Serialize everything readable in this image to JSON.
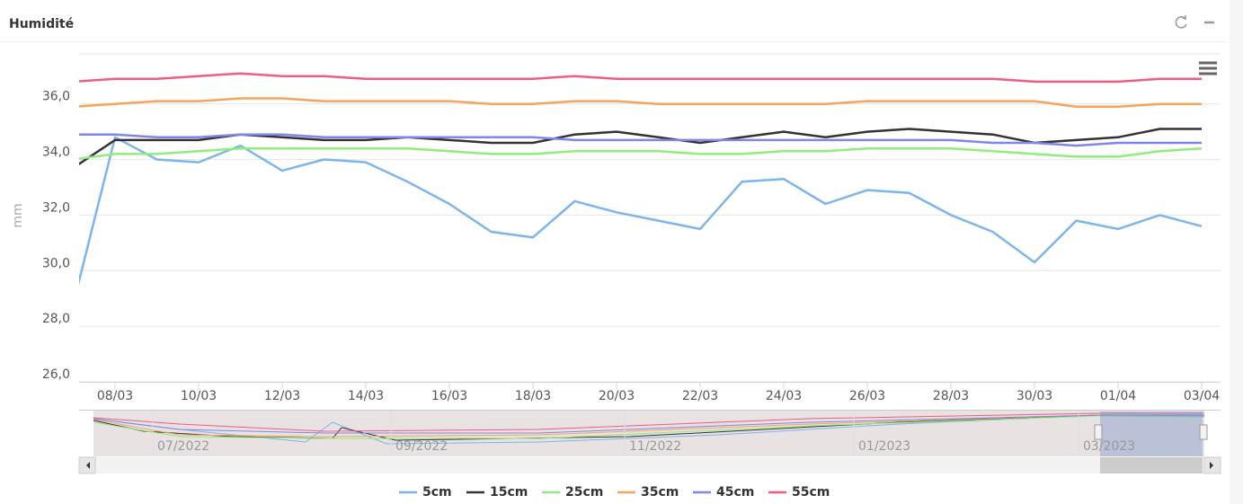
{
  "header": {
    "title": "Humidité"
  },
  "chart_data": {
    "type": "line",
    "y_label": "mm",
    "x": [
      null,
      "08/03",
      null,
      "10/03",
      null,
      "12/03",
      null,
      "14/03",
      null,
      "16/03",
      null,
      "18/03",
      null,
      "20/03",
      null,
      "22/03",
      null,
      "24/03",
      null,
      "26/03",
      null,
      "28/03",
      null,
      "30/03",
      null,
      "01/04",
      null,
      "03/04"
    ],
    "ylim": [
      26,
      37.8
    ],
    "yticks": [
      {
        "value": 26,
        "label": "26,0"
      },
      {
        "value": 28,
        "label": "28,0"
      },
      {
        "value": 30,
        "label": "30,0"
      },
      {
        "value": 32,
        "label": "32,0"
      },
      {
        "value": 34,
        "label": "34,0"
      },
      {
        "value": 36,
        "label": "36,0"
      }
    ],
    "grid": true,
    "legend": "bottom",
    "series": [
      {
        "name": "5cm",
        "color": "#7cb5ec",
        "values": [
          28.8,
          34.8,
          34.0,
          33.9,
          34.5,
          33.6,
          34.0,
          33.9,
          33.2,
          32.4,
          31.4,
          31.2,
          32.5,
          32.1,
          31.8,
          31.5,
          33.2,
          33.3,
          32.4,
          32.9,
          32.8,
          32.0,
          31.4,
          30.3,
          31.8,
          31.5,
          32.0,
          31.6
        ]
      },
      {
        "name": "15cm",
        "color": "#333333",
        "values": [
          33.7,
          34.7,
          34.7,
          34.7,
          34.9,
          34.8,
          34.7,
          34.7,
          34.8,
          34.7,
          34.6,
          34.6,
          34.9,
          35.0,
          34.8,
          34.6,
          34.8,
          35.0,
          34.8,
          35.0,
          35.1,
          35.0,
          34.9,
          34.6,
          34.7,
          34.8,
          35.1,
          35.1
        ]
      },
      {
        "name": "25cm",
        "color": "#90ed7d",
        "values": [
          34.0,
          34.2,
          34.2,
          34.3,
          34.4,
          34.4,
          34.4,
          34.4,
          34.4,
          34.3,
          34.2,
          34.2,
          34.3,
          34.3,
          34.3,
          34.2,
          34.2,
          34.3,
          34.3,
          34.4,
          34.4,
          34.4,
          34.3,
          34.2,
          34.1,
          34.1,
          34.3,
          34.4
        ]
      },
      {
        "name": "35cm",
        "color": "#f7a35c",
        "values": [
          35.9,
          36.0,
          36.1,
          36.1,
          36.2,
          36.2,
          36.1,
          36.1,
          36.1,
          36.1,
          36.0,
          36.0,
          36.1,
          36.1,
          36.0,
          36.0,
          36.0,
          36.0,
          36.0,
          36.1,
          36.1,
          36.1,
          36.1,
          36.1,
          35.9,
          35.9,
          36.0,
          36.0
        ]
      },
      {
        "name": "45cm",
        "color": "#8085e9",
        "values": [
          34.9,
          34.9,
          34.8,
          34.8,
          34.9,
          34.9,
          34.8,
          34.8,
          34.8,
          34.8,
          34.8,
          34.8,
          34.7,
          34.7,
          34.7,
          34.7,
          34.7,
          34.7,
          34.7,
          34.7,
          34.7,
          34.7,
          34.6,
          34.6,
          34.5,
          34.6,
          34.6,
          34.6
        ]
      },
      {
        "name": "55cm",
        "color": "#f15c80",
        "values": [
          36.8,
          36.9,
          36.9,
          37.0,
          37.1,
          37.0,
          37.0,
          36.9,
          36.9,
          36.9,
          36.9,
          36.9,
          37.0,
          36.9,
          36.9,
          36.9,
          36.9,
          36.9,
          36.9,
          36.9,
          36.9,
          36.9,
          36.9,
          36.8,
          36.8,
          36.8,
          36.9,
          36.9
        ]
      }
    ],
    "navigator": {
      "labels": [
        "07/2022",
        "09/2022",
        "11/2022",
        "01/2023",
        "03/2023"
      ]
    }
  }
}
